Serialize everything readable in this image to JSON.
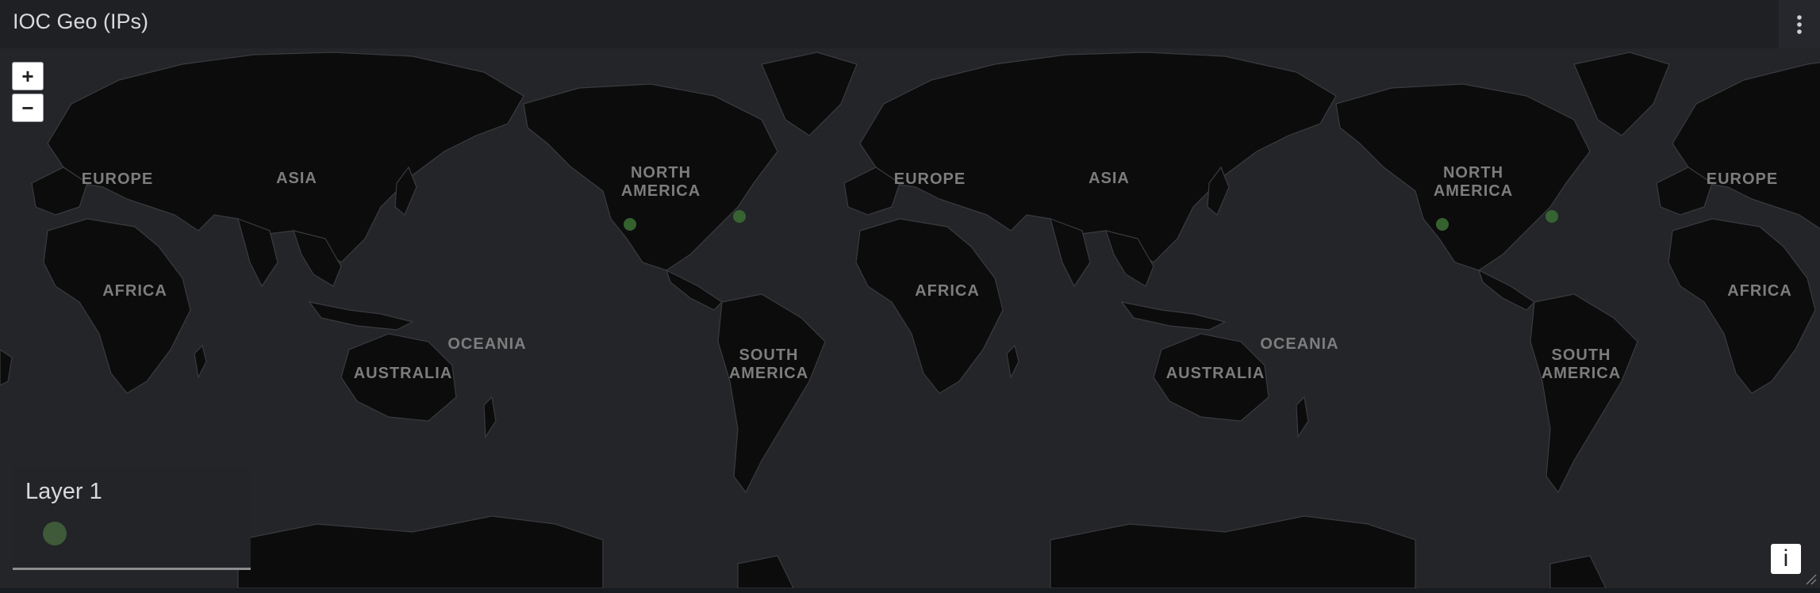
{
  "panel": {
    "title": "IOC Geo (IPs)",
    "menu_icon": "kebab-menu-icon"
  },
  "map": {
    "zoom_in_label": "+",
    "zoom_out_label": "−",
    "info_label": "i",
    "region_labels": {
      "europe": "EUROPE",
      "asia": "ASIA",
      "africa": "AFRICA",
      "north_america_1": "NORTH",
      "north_america_2": "AMERICA",
      "south_america_1": "SOUTH",
      "south_america_2": "AMERICA",
      "oceania": "OCEANIA",
      "australia": "AUSTRALIA"
    },
    "ioc_points": [
      {
        "location": "West coast USA",
        "lat": 37.5,
        "lon": -122.0
      },
      {
        "location": "East coast USA",
        "lat": 40.5,
        "lon": -74.0
      }
    ],
    "point_color": "#3a6a33"
  },
  "legend": {
    "title": "Layer 1",
    "swatch_color": "#3e5a38"
  }
}
